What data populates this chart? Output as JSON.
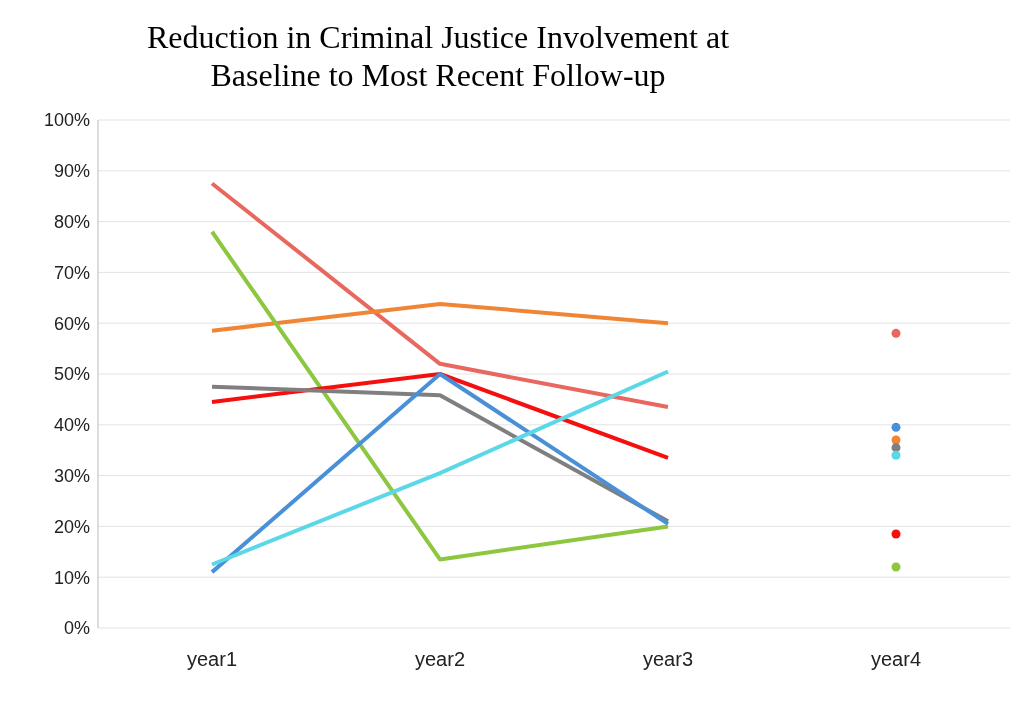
{
  "chart_data": {
    "type": "line",
    "title": "Reduction in Criminal Justice Involvement at Baseline to Most Recent Follow-up",
    "categories": [
      "year1",
      "year2",
      "year3",
      "year4"
    ],
    "series": [
      {
        "color": "#e8675f",
        "values": [
          87.5,
          52,
          43.5,
          null
        ]
      },
      {
        "color": "#f08536",
        "values": [
          58.5,
          63.8,
          60,
          null
        ]
      },
      {
        "color": "#8dc63f",
        "values": [
          78,
          13.5,
          20,
          null
        ]
      },
      {
        "color": "#f50f0f",
        "values": [
          44.5,
          50,
          33.5,
          null
        ]
      },
      {
        "color": "#7f7f7f",
        "values": [
          47.5,
          45.8,
          21,
          null
        ]
      },
      {
        "color": "#4a90d9",
        "values": [
          11,
          50,
          20.5,
          null
        ]
      },
      {
        "color": "#5bd8e8",
        "values": [
          12.5,
          30.5,
          50.5,
          null
        ]
      },
      {
        "type": "scatter",
        "marker": "circle",
        "x": [
          "year4",
          "year4",
          "year4",
          "year4",
          "year4",
          "year4",
          "year4"
        ],
        "values": [
          58,
          37,
          12,
          18.5,
          35.5,
          39.5,
          34
        ],
        "colors": [
          "#e8675f",
          "#f08536",
          "#8dc63f",
          "#f50f0f",
          "#7f7f7f",
          "#4a90d9",
          "#5bd8e8"
        ]
      }
    ],
    "ylim": [
      0,
      100
    ],
    "yticks": [
      {
        "value": 0,
        "label": "0%"
      },
      {
        "value": 10,
        "label": "10%"
      },
      {
        "value": 20,
        "label": "20%"
      },
      {
        "value": 30,
        "label": "30%"
      },
      {
        "value": 40,
        "label": "40%"
      },
      {
        "value": 50,
        "label": "50%"
      },
      {
        "value": 60,
        "label": "60%"
      },
      {
        "value": 70,
        "label": "70%"
      },
      {
        "value": 80,
        "label": "80%"
      },
      {
        "value": 90,
        "label": "90%"
      },
      {
        "value": 100,
        "label": "100%"
      }
    ],
    "grid": "y",
    "marker": "none",
    "line_style": "solid"
  }
}
